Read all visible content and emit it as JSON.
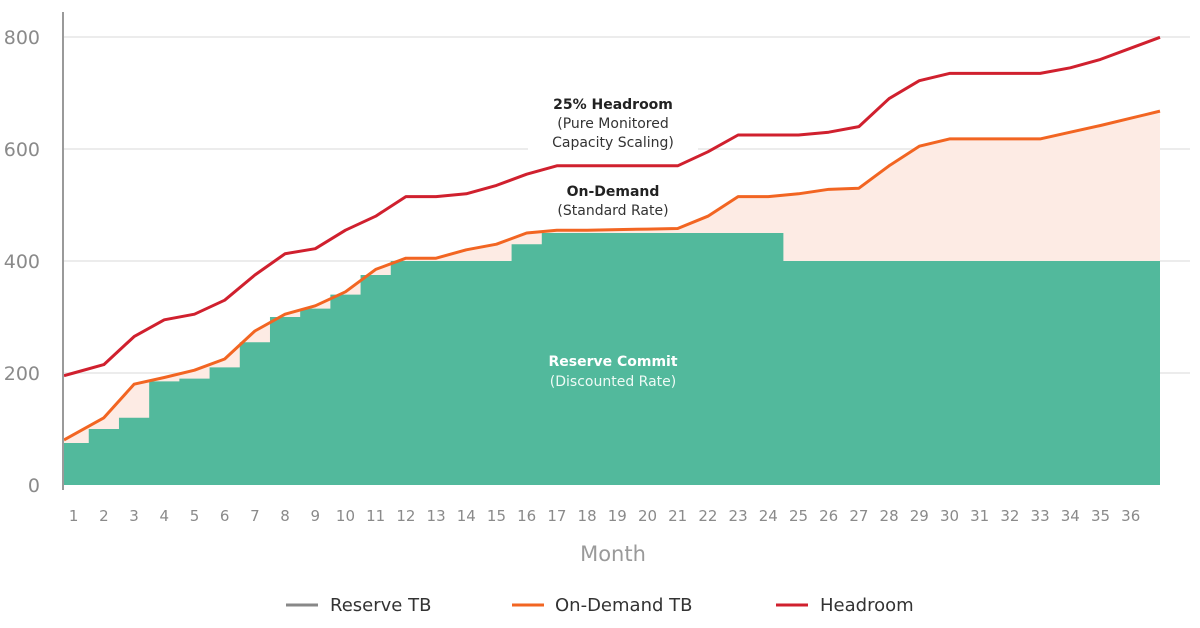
{
  "chart_data": {
    "type": "area",
    "xlabel": "Month",
    "ylabel": "",
    "xlim": [
      0.68,
      36.97
    ],
    "ylim": [
      0,
      800
    ],
    "yticks": [
      0,
      200,
      400,
      600,
      800
    ],
    "x": [
      1,
      2,
      3,
      4,
      5,
      6,
      7,
      8,
      9,
      10,
      11,
      12,
      13,
      14,
      15,
      16,
      17,
      18,
      19,
      20,
      21,
      22,
      23,
      24,
      25,
      26,
      27,
      28,
      29,
      30,
      31,
      32,
      33,
      34,
      35,
      36
    ],
    "grid": "horizontal",
    "legend_position": "bottom",
    "series": [
      {
        "name": "Reserve TB",
        "color": "#52b99c",
        "legend_color": "#888888",
        "style": "step-area",
        "values": [
          75,
          100,
          120,
          185,
          190,
          210,
          255,
          300,
          315,
          340,
          375,
          400,
          400,
          400,
          400,
          430,
          450,
          450,
          450,
          450,
          450,
          450,
          450,
          450,
          400,
          400,
          400,
          400,
          400,
          400,
          400,
          400,
          400,
          400,
          400,
          400
        ]
      },
      {
        "name": "On-Demand TB",
        "color": "#f26522",
        "fill": "#fdebe4",
        "style": "line",
        "values": [
          90,
          120,
          180,
          192,
          205,
          225,
          275,
          305,
          320,
          345,
          385,
          405,
          405,
          420,
          430,
          450,
          455,
          455,
          456,
          457,
          458,
          480,
          515,
          515,
          520,
          528,
          530,
          570,
          605,
          618,
          618,
          618,
          618,
          630,
          642,
          655
        ]
      },
      {
        "name": "Headroom",
        "color": "#d0202e",
        "style": "line",
        "values": [
          200,
          215,
          265,
          295,
          305,
          330,
          375,
          413,
          422,
          455,
          480,
          515,
          515,
          520,
          535,
          555,
          570,
          570,
          570,
          570,
          570,
          595,
          625,
          625,
          625,
          630,
          640,
          690,
          722,
          735,
          735,
          735,
          735,
          745,
          760,
          780
        ]
      }
    ],
    "annotations": {
      "headroom": {
        "title": "25% Headroom",
        "line1": "(Pure Monitored",
        "line2": "Capacity Scaling)"
      },
      "on_demand": {
        "title": "On-Demand",
        "line1": "(Standard Rate)"
      },
      "reserve": {
        "title": "Reserve Commit",
        "line1": "(Discounted Rate)"
      }
    }
  }
}
